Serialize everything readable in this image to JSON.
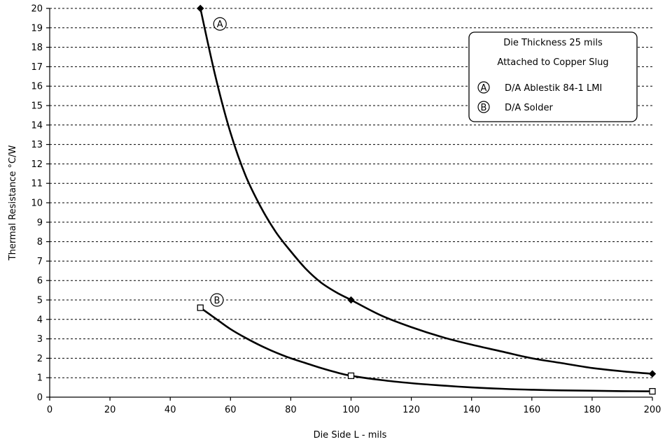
{
  "chart_data": {
    "type": "line",
    "title": "",
    "xlabel": "Die Side L - mils",
    "ylabel": "Thermal Resistance °C/W",
    "xlim": [
      0,
      200
    ],
    "ylim": [
      0,
      20
    ],
    "xticks": [
      0,
      20,
      40,
      60,
      80,
      100,
      120,
      140,
      160,
      180,
      200
    ],
    "yticks": [
      0,
      1,
      2,
      3,
      4,
      5,
      6,
      7,
      8,
      9,
      10,
      11,
      12,
      13,
      14,
      15,
      16,
      17,
      18,
      19,
      20
    ],
    "grid": "horizontal dashed",
    "legend_placement": "top-right",
    "legend": {
      "header_line1": "Die Thickness 25 mils",
      "header_line2": "Attached to Copper Slug",
      "entries": [
        {
          "marker": "A",
          "label": "D/A Ablestik 84-1 LMI"
        },
        {
          "marker": "B",
          "label": "D/A Solder"
        }
      ]
    },
    "series": [
      {
        "id": "A",
        "marker_shape": "diamond",
        "data_points": [
          [
            50,
            20
          ],
          [
            100,
            5
          ],
          [
            200,
            1.2
          ]
        ],
        "curve": [
          [
            50,
            20
          ],
          [
            55,
            16.5
          ],
          [
            60,
            13.6
          ],
          [
            65,
            11.4
          ],
          [
            70,
            9.8
          ],
          [
            75,
            8.5
          ],
          [
            80,
            7.5
          ],
          [
            85,
            6.6
          ],
          [
            90,
            5.9
          ],
          [
            95,
            5.4
          ],
          [
            100,
            5
          ],
          [
            110,
            4.2
          ],
          [
            120,
            3.6
          ],
          [
            130,
            3.1
          ],
          [
            140,
            2.7
          ],
          [
            150,
            2.35
          ],
          [
            160,
            2.0
          ],
          [
            170,
            1.75
          ],
          [
            180,
            1.5
          ],
          [
            190,
            1.33
          ],
          [
            200,
            1.2
          ]
        ]
      },
      {
        "id": "B",
        "marker_shape": "square",
        "data_points": [
          [
            50,
            4.6
          ],
          [
            100,
            1.1
          ],
          [
            200,
            0.3
          ]
        ],
        "curve": [
          [
            50,
            4.6
          ],
          [
            55,
            4.05
          ],
          [
            60,
            3.5
          ],
          [
            65,
            3.05
          ],
          [
            70,
            2.65
          ],
          [
            75,
            2.3
          ],
          [
            80,
            2.0
          ],
          [
            85,
            1.75
          ],
          [
            90,
            1.5
          ],
          [
            95,
            1.28
          ],
          [
            100,
            1.1
          ],
          [
            110,
            0.88
          ],
          [
            120,
            0.72
          ],
          [
            130,
            0.6
          ],
          [
            140,
            0.5
          ],
          [
            150,
            0.43
          ],
          [
            160,
            0.38
          ],
          [
            170,
            0.35
          ],
          [
            180,
            0.33
          ],
          [
            190,
            0.31
          ],
          [
            200,
            0.3
          ]
        ]
      }
    ],
    "annotations": [
      {
        "text": "A",
        "series": "A",
        "x": 56.5,
        "y": 19.2
      },
      {
        "text": "B",
        "series": "B",
        "x": 55.5,
        "y": 5.0
      }
    ]
  }
}
